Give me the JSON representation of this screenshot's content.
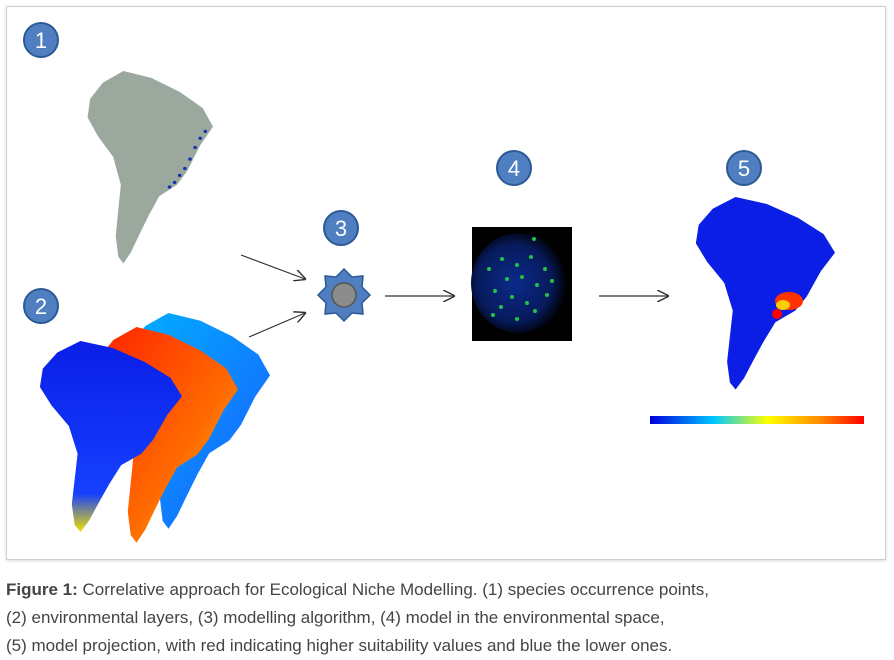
{
  "steps": [
    "1",
    "2",
    "3",
    "4",
    "5"
  ],
  "caption": {
    "label": "Figure 1:",
    "line1": " Correlative approach for Ecological Niche Modelling. (1) species occurrence points,",
    "line2": "(2) environmental layers, (3) modelling algorithm, (4) model in the environmental space,",
    "line3": "(5) model projection, with red indicating higher suitability values and blue the lower ones."
  },
  "colors": {
    "step_badge": "#4f7fc0",
    "step_badge_border": "#2c5a96",
    "map_grey": "#9aa89e",
    "map_blue": "#0a1ee6",
    "gear": "#4f7fc0",
    "env_space_bg": "#000000",
    "suitability_colorbar": [
      "#0000dd",
      "#00c8ff",
      "#ffff00",
      "#ff8800",
      "#ff0000"
    ]
  }
}
